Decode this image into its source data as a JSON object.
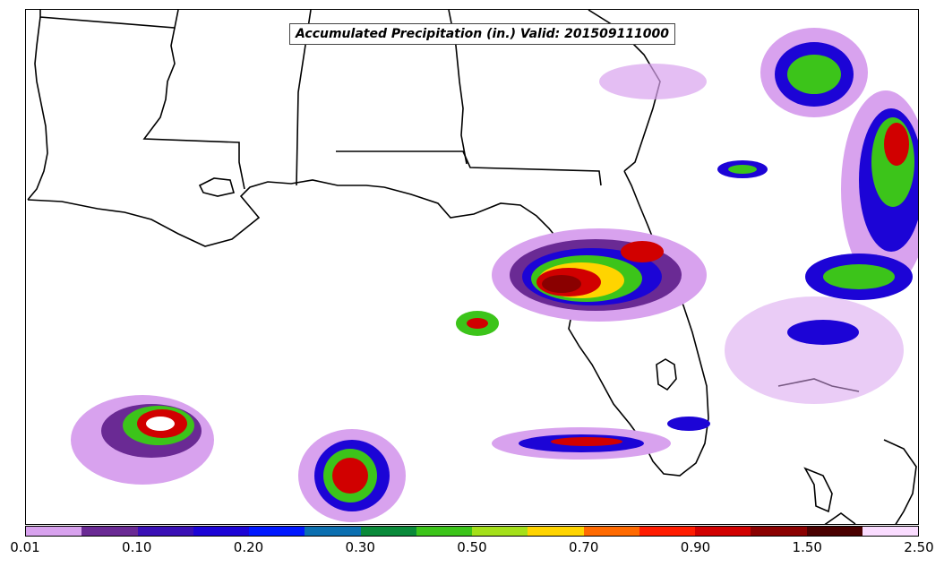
{
  "title": "Accumulated Precipitation (in.) Valid: 201509111000",
  "colorbar": {
    "colors": [
      "#d8a2ee",
      "#6a2a94",
      "#3a10b6",
      "#1c04d6",
      "#0018ff",
      "#0b6fb0",
      "#0a8a3a",
      "#3cc41a",
      "#a4e01a",
      "#ffd400",
      "#ff6a00",
      "#ff1c00",
      "#d10000",
      "#8a0000",
      "#4a0000",
      "#fadcff"
    ],
    "tick_labels": [
      "0.01",
      "0.10",
      "0.20",
      "0.30",
      "0.50",
      "0.70",
      "0.90",
      "1.50",
      "2.50"
    ]
  },
  "colors": {
    "coastline": "#000000",
    "precip_light": "#d8a2ee",
    "precip_purple": "#6a2a94",
    "precip_blue": "#1c04d6",
    "precip_green": "#3cc41a",
    "precip_yellow": "#ffd400",
    "precip_red": "#d10000",
    "precip_darkred": "#8a0000"
  }
}
